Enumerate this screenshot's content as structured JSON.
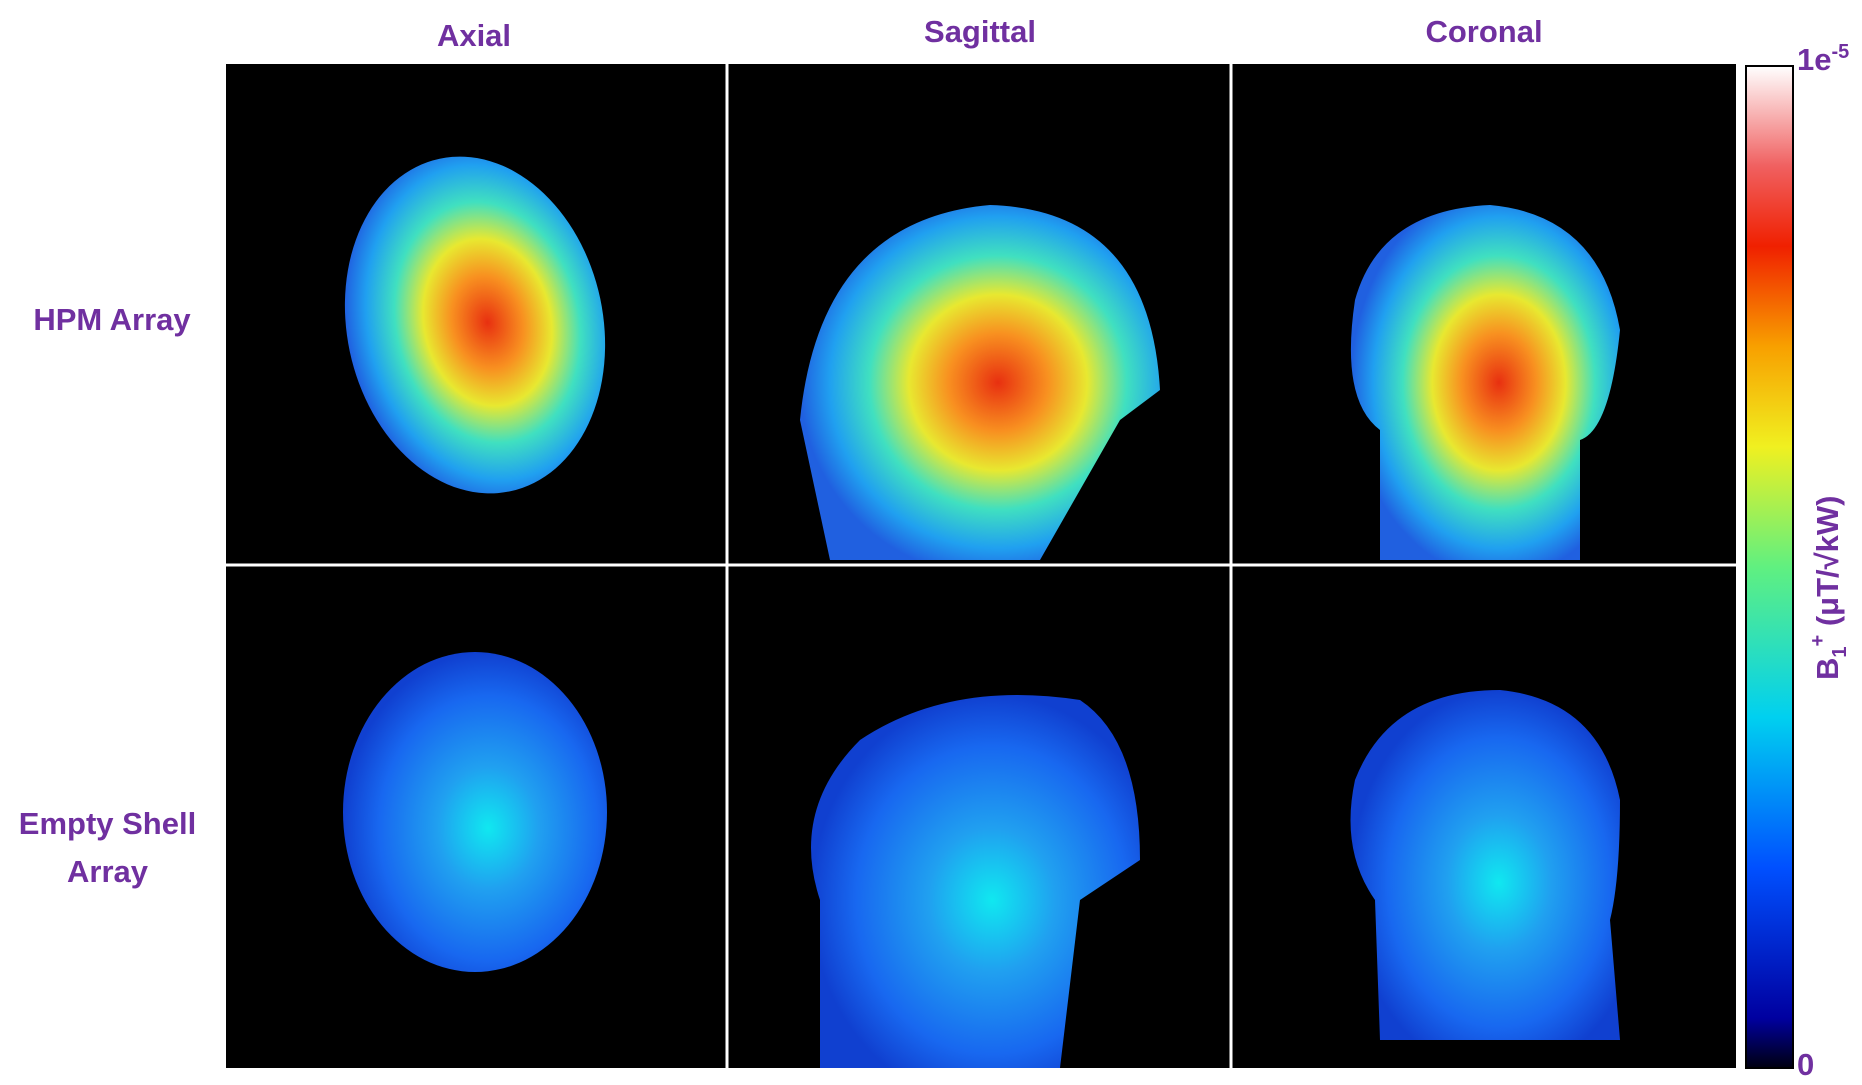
{
  "columns": [
    "Axial",
    "Sagittal",
    "Coronal"
  ],
  "rows": [
    "HPM  Array",
    "Empty Shell Array"
  ],
  "colorbar": {
    "max_base": "1e",
    "max_exponent": "-5",
    "min_label": "0",
    "label_symbol": "B",
    "label_subscript": "1",
    "label_superscript": "+",
    "label_units": " (μT/√kW)"
  }
}
